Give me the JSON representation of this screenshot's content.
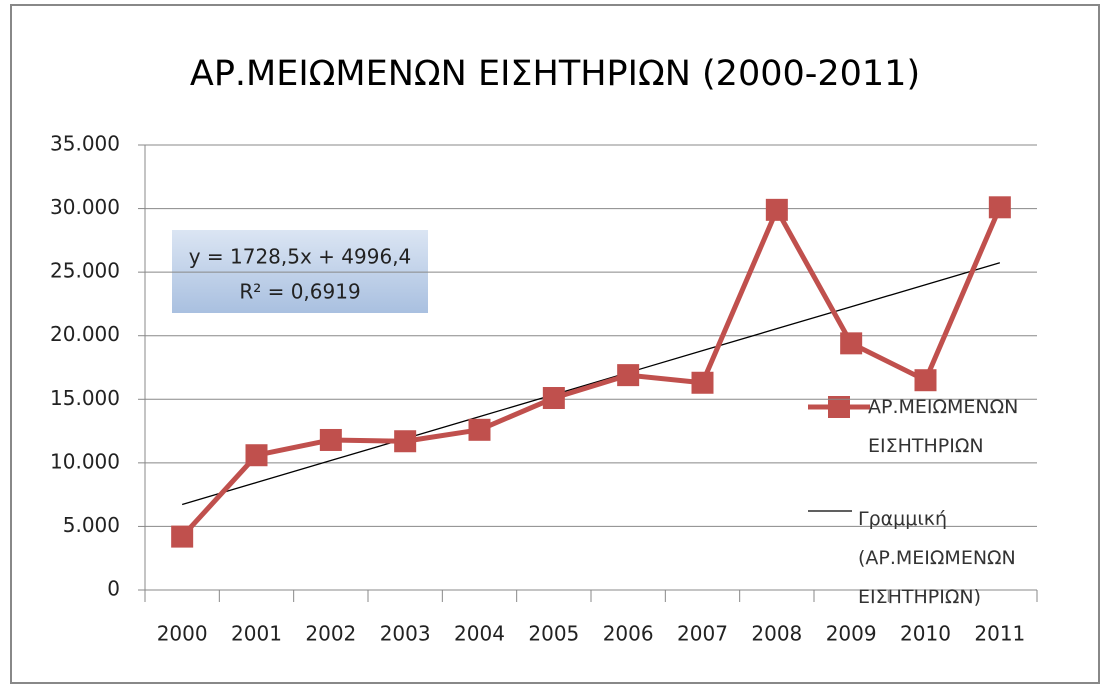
{
  "chart_data": {
    "type": "line",
    "title": "ΑΡ.ΜΕΙΩΜΕΝΩΝ ΕΙΣΗΤΗΡΙΩΝ (2000-2011)",
    "categories": [
      "2000",
      "2001",
      "2002",
      "2003",
      "2004",
      "2005",
      "2006",
      "2007",
      "2008",
      "2009",
      "2010",
      "2011"
    ],
    "series": [
      {
        "name": "ΑΡ.ΜΕΙΩΜΕΝΩΝ ΕΙΣΗΤΗΡΙΩΝ",
        "color": "#c0504d",
        "marker": "square",
        "values": [
          4200,
          10600,
          11800,
          11700,
          12600,
          15100,
          16900,
          16300,
          29900,
          19400,
          16500,
          30100
        ]
      },
      {
        "name": "Γραμμική (ΑΡ.ΜΕΙΩΜΕΝΩΝ ΕΙΣΗΤΗΡΙΩΝ)",
        "color": "#000000",
        "marker": "none",
        "values": [
          6725,
          8453,
          10182,
          11910,
          13639,
          15367,
          17096,
          18824,
          20553,
          22281,
          24010,
          25738
        ]
      }
    ],
    "annotations": [
      "y = 1728,5x + 4996,4",
      "R² = 0,6919"
    ],
    "ylim": [
      0,
      35000
    ],
    "yticks": [
      0,
      {
        "value": 5000,
        "label": "5.000"
      },
      {
        "value": 10000,
        "label": "10.000"
      },
      {
        "value": 15000,
        "label": "15.000"
      },
      {
        "value": 20000,
        "label": "20.000"
      },
      {
        "value": 25000,
        "label": "25.000"
      },
      {
        "value": 30000,
        "label": "30.000"
      },
      {
        "value": 35000,
        "label": "35.000"
      }
    ],
    "grid": true,
    "legend": "right"
  }
}
